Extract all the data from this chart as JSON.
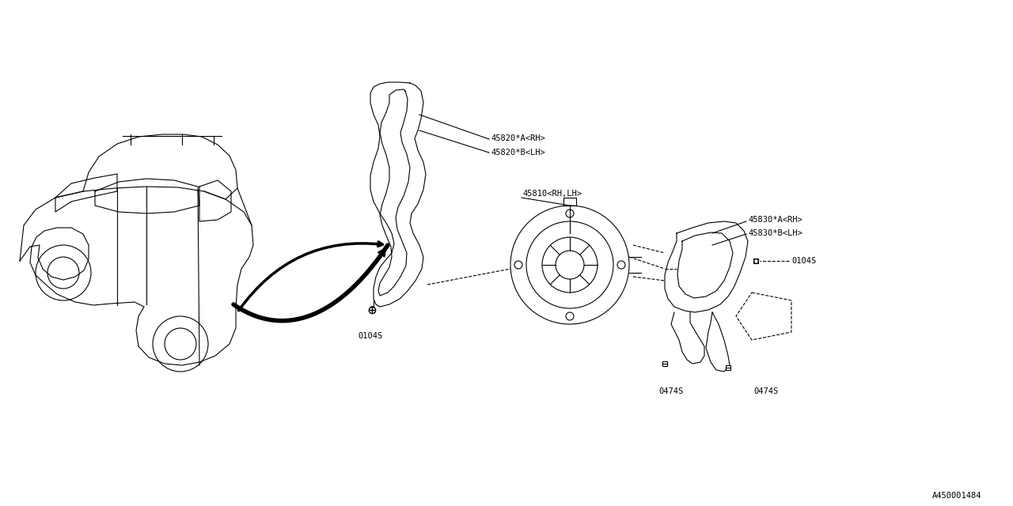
{
  "bg_color": "#ffffff",
  "line_color": "#000000",
  "fig_width": 12.8,
  "fig_height": 6.4,
  "diagram_id": "A450001484",
  "labels": {
    "label1a": "45820*A<RH>",
    "label1b": "45820*B<LH>",
    "label2": "45810<RH,LH>",
    "label3a": "45830*A<RH>",
    "label3b": "45830*B<LH>",
    "bolt1": "0104S",
    "bolt2": "0104S",
    "bolt3": "0474S",
    "bolt4": "0474S"
  }
}
